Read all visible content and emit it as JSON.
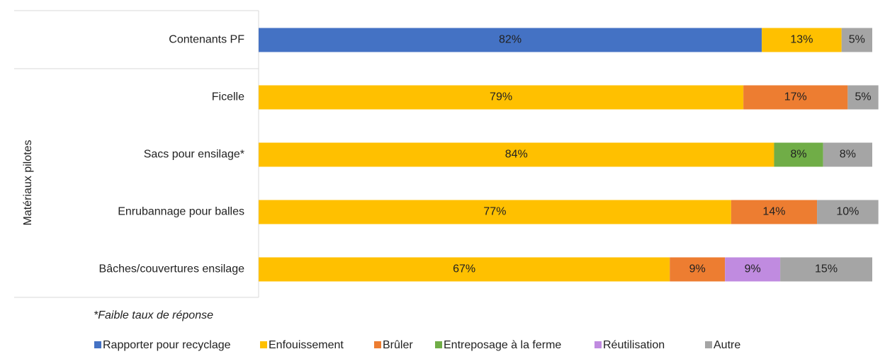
{
  "chart_data": {
    "type": "stacked-bar-horizontal",
    "y_axis_label": "Matériaux pilotes",
    "note": "*Faible taux de réponse",
    "categories": [
      "Contenants PF",
      "Ficelle",
      "Sacs pour ensilage*",
      "Enrubannage pour balles",
      "Bâches/couvertures ensilage"
    ],
    "xlim": [
      0,
      100
    ],
    "series": [
      {
        "name": "Rapporter pour recyclage",
        "color": "#4472c4",
        "values": [
          82,
          null,
          null,
          null,
          null
        ],
        "value_labels": [
          "82%",
          null,
          null,
          null,
          null
        ]
      },
      {
        "name": "Enfouissement",
        "color": "#ffc000",
        "values": [
          13,
          79,
          84,
          77,
          67
        ],
        "value_labels": [
          "13%",
          "79%",
          "84%",
          "77%",
          "67%"
        ]
      },
      {
        "name": "Brûler",
        "color": "#ed7d31",
        "values": [
          null,
          17,
          null,
          14,
          9
        ],
        "value_labels": [
          null,
          "17%",
          null,
          "14%",
          "9%"
        ]
      },
      {
        "name": "Entreposage à la ferme",
        "color": "#70ad47",
        "values": [
          null,
          null,
          8,
          null,
          null
        ],
        "value_labels": [
          null,
          null,
          "8%",
          null,
          null
        ]
      },
      {
        "name": "Réutilisation",
        "color": "#c08be0",
        "values": [
          null,
          null,
          null,
          null,
          9
        ],
        "value_labels": [
          null,
          null,
          null,
          null,
          "9%"
        ]
      },
      {
        "name": "Autre",
        "color": "#a5a5a5",
        "values": [
          5,
          5,
          8,
          10,
          15
        ],
        "value_labels": [
          "5%",
          "5%",
          "8%",
          "10%",
          "15%"
        ]
      }
    ]
  }
}
